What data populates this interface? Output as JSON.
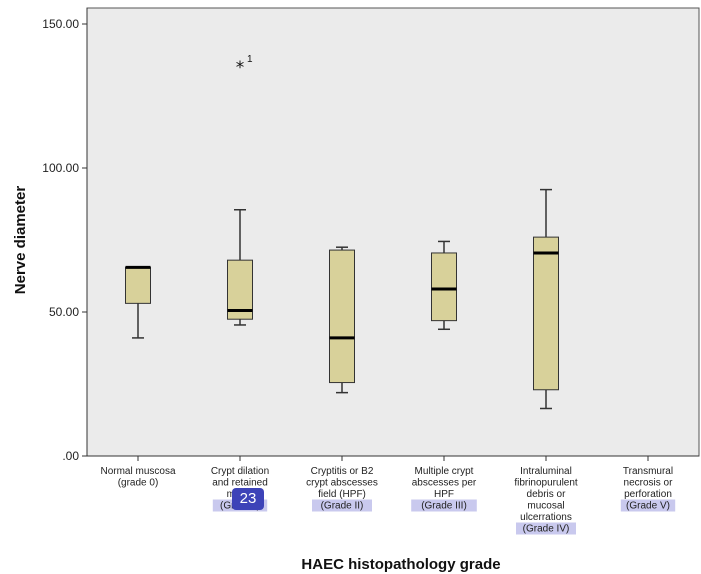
{
  "chart_data": {
    "type": "box",
    "title": "",
    "xlabel": "HAEC histopathology grade",
    "ylabel": "Nerve diameter",
    "ylim": [
      0,
      150
    ],
    "yticks": [
      0,
      50,
      100,
      150
    ],
    "ytick_labels": [
      ".00",
      "50.00",
      "100.00",
      "150.00"
    ],
    "grid": false,
    "colors": {
      "plot_bg": "#ebebeb",
      "box_fill": "#d8d19a",
      "box_stroke": "#333333",
      "highlight": "#c9c9ee"
    },
    "categories": [
      {
        "lines": [
          "Normal muscosa",
          "(grade 0)"
        ],
        "highlight_line": -1
      },
      {
        "lines": [
          "Crypt dilation",
          "and retained",
          "mucin",
          "(Grade I)"
        ],
        "highlight_line": 3
      },
      {
        "lines": [
          "Cryptitis or B2",
          "crypt abscesses",
          "field (HPF)",
          "(Grade II)"
        ],
        "highlight_line": 3
      },
      {
        "lines": [
          "Multiple crypt",
          "abscesses per",
          "HPF",
          "(Grade III)"
        ],
        "highlight_line": 3
      },
      {
        "lines": [
          "Intraluminal",
          "fibrinopurulent",
          "debris or",
          "mucosal",
          "ulcerrations",
          "(Grade IV)"
        ],
        "highlight_line": 5
      },
      {
        "lines": [
          "Transmural",
          "necrosis or",
          "perforation",
          "(Grade V)"
        ],
        "highlight_line": 3
      }
    ],
    "boxes": [
      {
        "min": 41,
        "q1": 53,
        "median": 65.5,
        "q3": 65.5,
        "max": 65.5
      },
      {
        "min": 45.5,
        "q1": 47.5,
        "median": 50.5,
        "q3": 68,
        "max": 85.5,
        "outliers": [
          {
            "value": 135.5,
            "label": "1"
          }
        ]
      },
      {
        "min": 22,
        "q1": 25.5,
        "median": 41,
        "q3": 71.5,
        "max": 72.5
      },
      {
        "min": 44,
        "q1": 47,
        "median": 58,
        "q3": 70.5,
        "max": 74.5
      },
      {
        "min": 16.5,
        "q1": 23,
        "median": 70.5,
        "q3": 76,
        "max": 92.5
      },
      null
    ]
  },
  "overlay_badge": "23"
}
